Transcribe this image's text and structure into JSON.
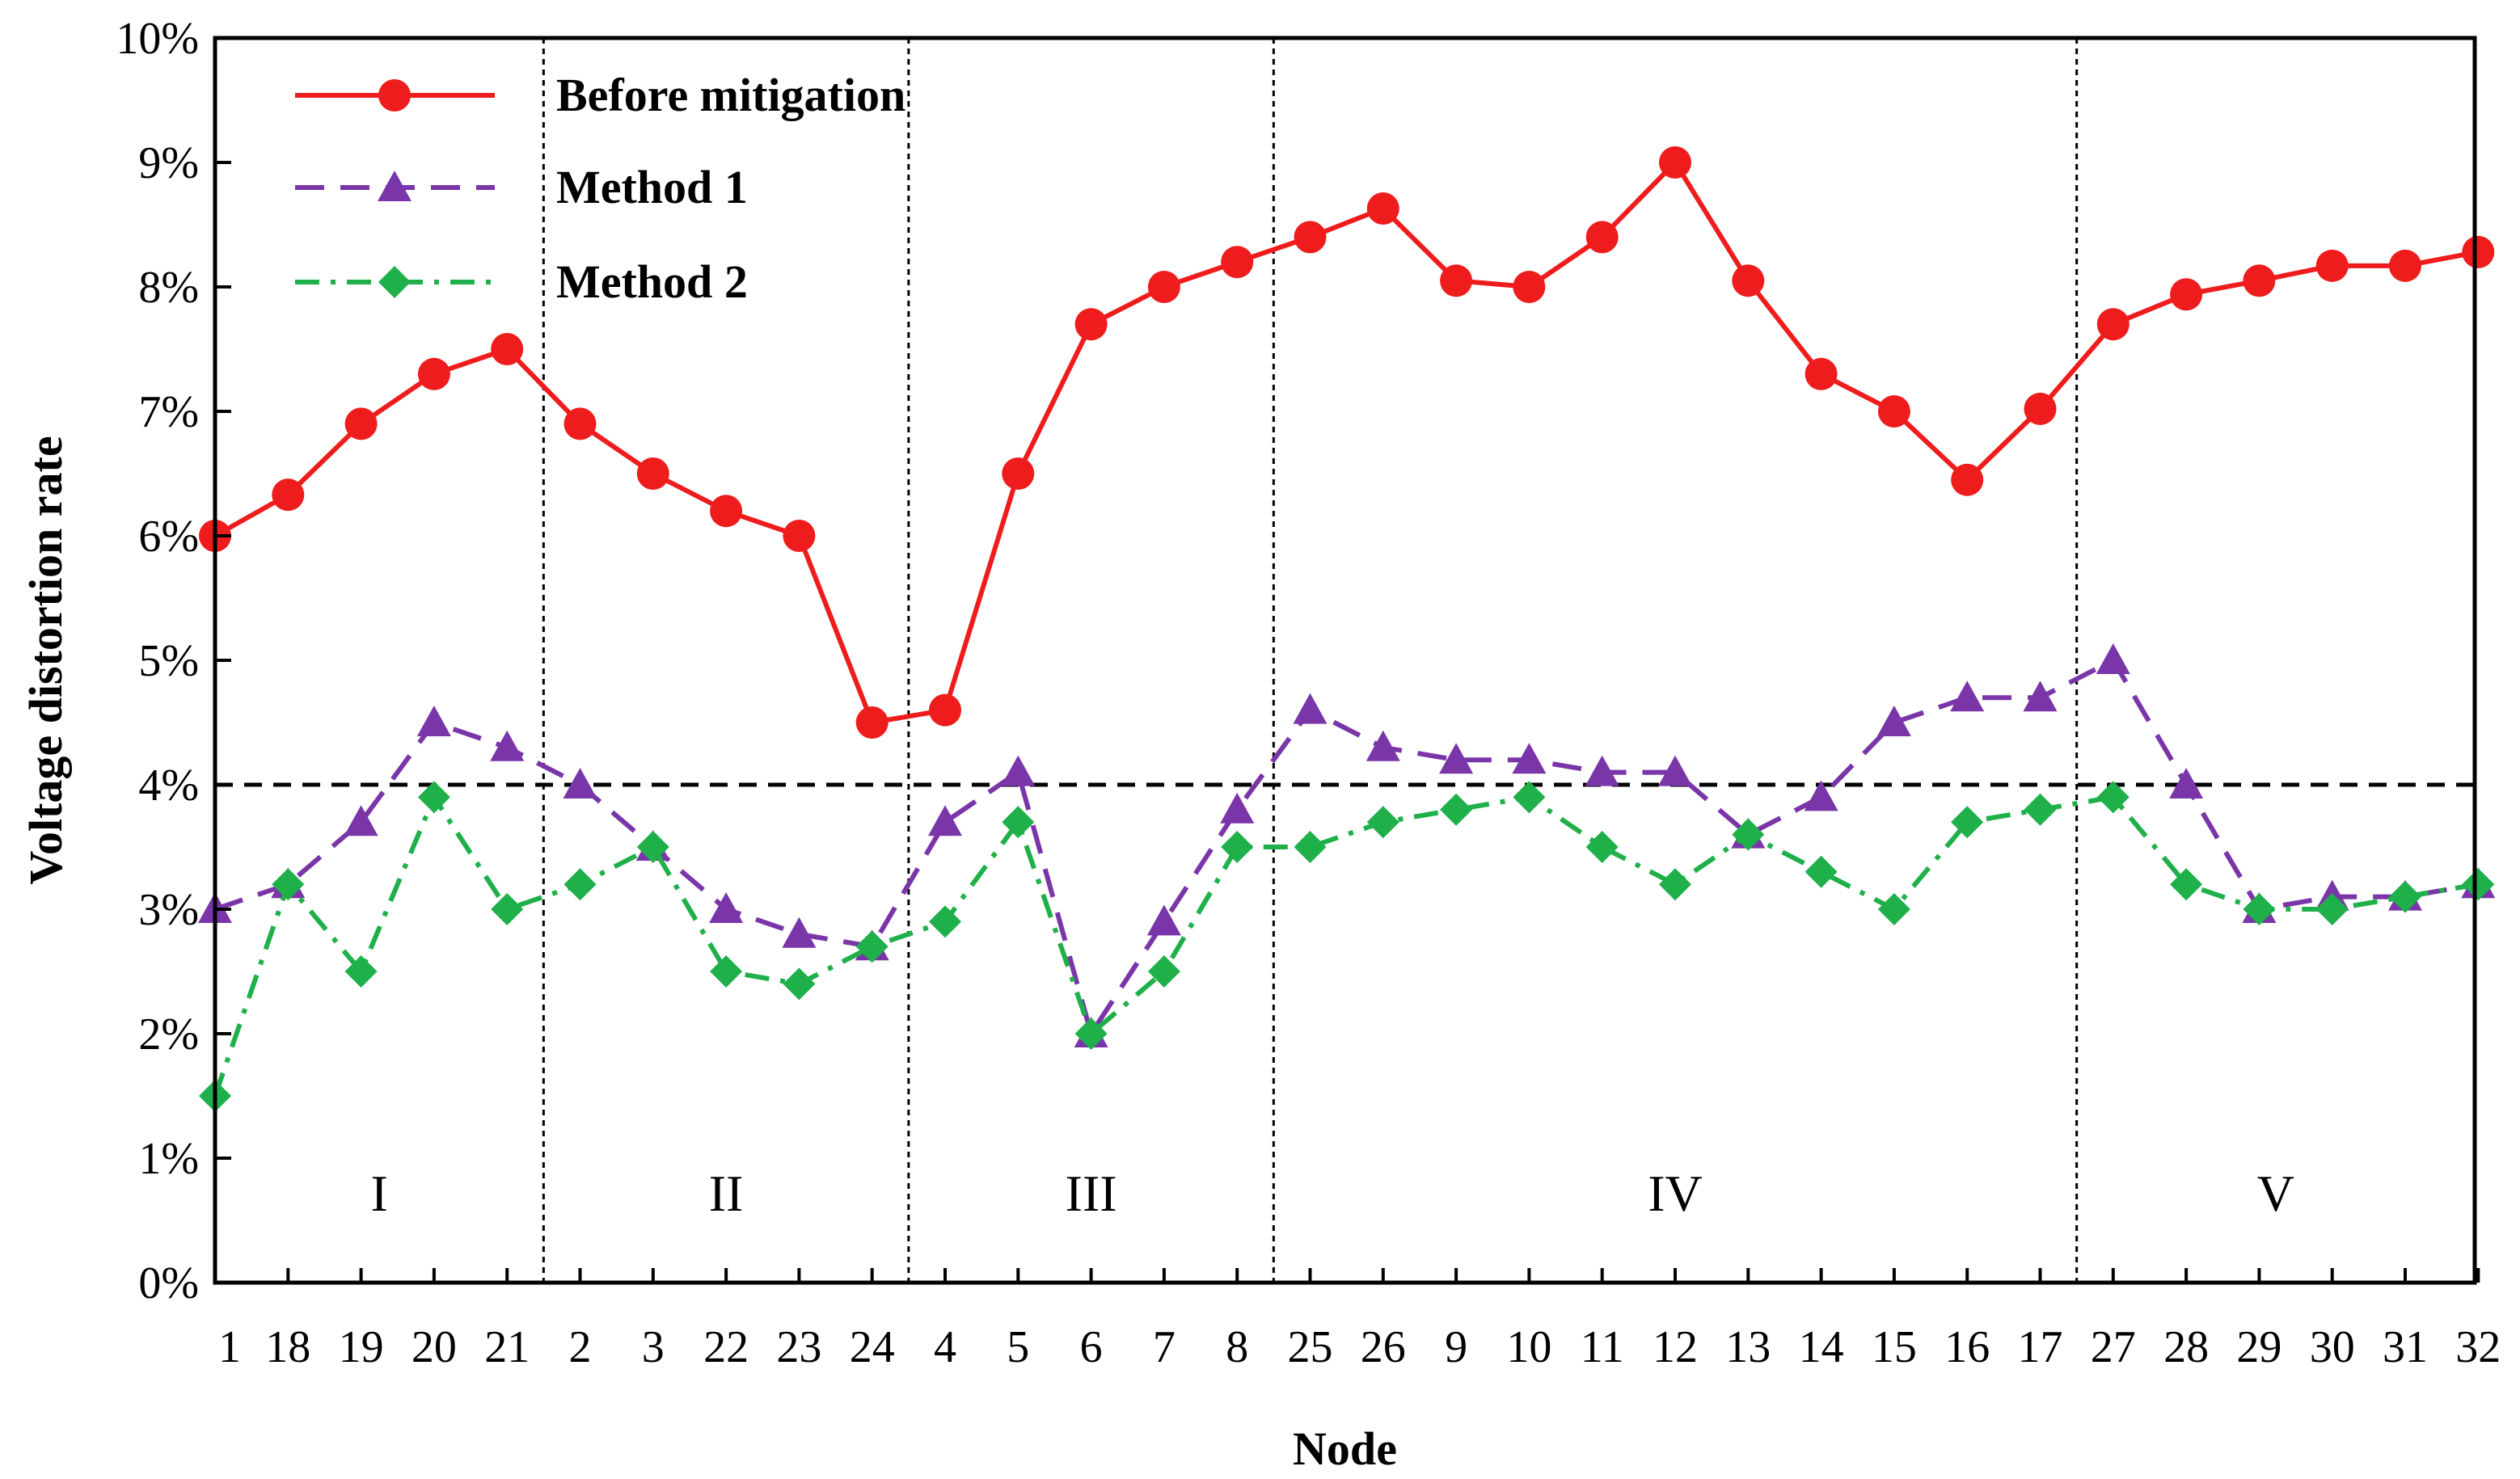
{
  "chart_data": {
    "type": "line",
    "xlabel": "Node",
    "ylabel": "Voltage distortion rate",
    "ylim": [
      0,
      10
    ],
    "ytick_labels": [
      "0%",
      "1%",
      "2%",
      "3%",
      "4%",
      "5%",
      "6%",
      "7%",
      "8%",
      "9%",
      "10%"
    ],
    "categories": [
      "1",
      "18",
      "19",
      "20",
      "21",
      "2",
      "3",
      "22",
      "23",
      "24",
      "4",
      "5",
      "6",
      "7",
      "8",
      "25",
      "26",
      "9",
      "10",
      "11",
      "12",
      "13",
      "14",
      "15",
      "16",
      "17",
      "27",
      "28",
      "29",
      "30",
      "31",
      "32"
    ],
    "threshold": 4,
    "regions": [
      {
        "label": "I",
        "start_index": 0,
        "end_index": 4
      },
      {
        "label": "II",
        "start_index": 5,
        "end_index": 9
      },
      {
        "label": "III",
        "start_index": 10,
        "end_index": 14
      },
      {
        "label": "IV",
        "start_index": 15,
        "end_index": 25
      },
      {
        "label": "V",
        "start_index": 26,
        "end_index": 31
      }
    ],
    "series": [
      {
        "name": "Before mitigation",
        "color": "#ee1c1c",
        "line_style": "solid",
        "marker": "circle",
        "values": [
          6.0,
          6.33,
          6.9,
          7.3,
          7.5,
          6.9,
          6.5,
          6.2,
          6.0,
          4.5,
          4.6,
          6.5,
          7.7,
          8.0,
          8.2,
          8.4,
          8.63,
          8.05,
          8.0,
          8.4,
          9.0,
          8.05,
          7.3,
          7.0,
          6.45,
          7.02,
          7.7,
          7.94,
          8.05,
          8.17,
          8.17,
          8.28
        ]
      },
      {
        "name": "Method 1",
        "color": "#7a35a8",
        "line_style": "dashed",
        "marker": "triangle",
        "values": [
          3.0,
          3.2,
          3.7,
          4.5,
          4.3,
          4.0,
          3.5,
          3.0,
          2.8,
          2.7,
          3.7,
          4.1,
          2.0,
          2.9,
          3.8,
          4.6,
          4.3,
          4.2,
          4.2,
          4.1,
          4.1,
          3.6,
          3.9,
          4.5,
          4.7,
          4.7,
          5.0,
          4.0,
          3.0,
          3.1,
          3.1,
          3.2
        ]
      },
      {
        "name": "Method 2",
        "color": "#1fb04a",
        "line_style": "dash-dot",
        "marker": "diamond",
        "values": [
          1.5,
          3.2,
          2.5,
          3.9,
          3.0,
          3.2,
          3.5,
          2.5,
          2.4,
          2.7,
          2.9,
          3.7,
          2.0,
          2.5,
          3.5,
          3.5,
          3.7,
          3.8,
          3.9,
          3.5,
          3.2,
          3.6,
          3.3,
          3.0,
          3.7,
          3.8,
          3.9,
          3.2,
          3.0,
          3.0,
          3.1,
          3.2
        ]
      }
    ]
  }
}
